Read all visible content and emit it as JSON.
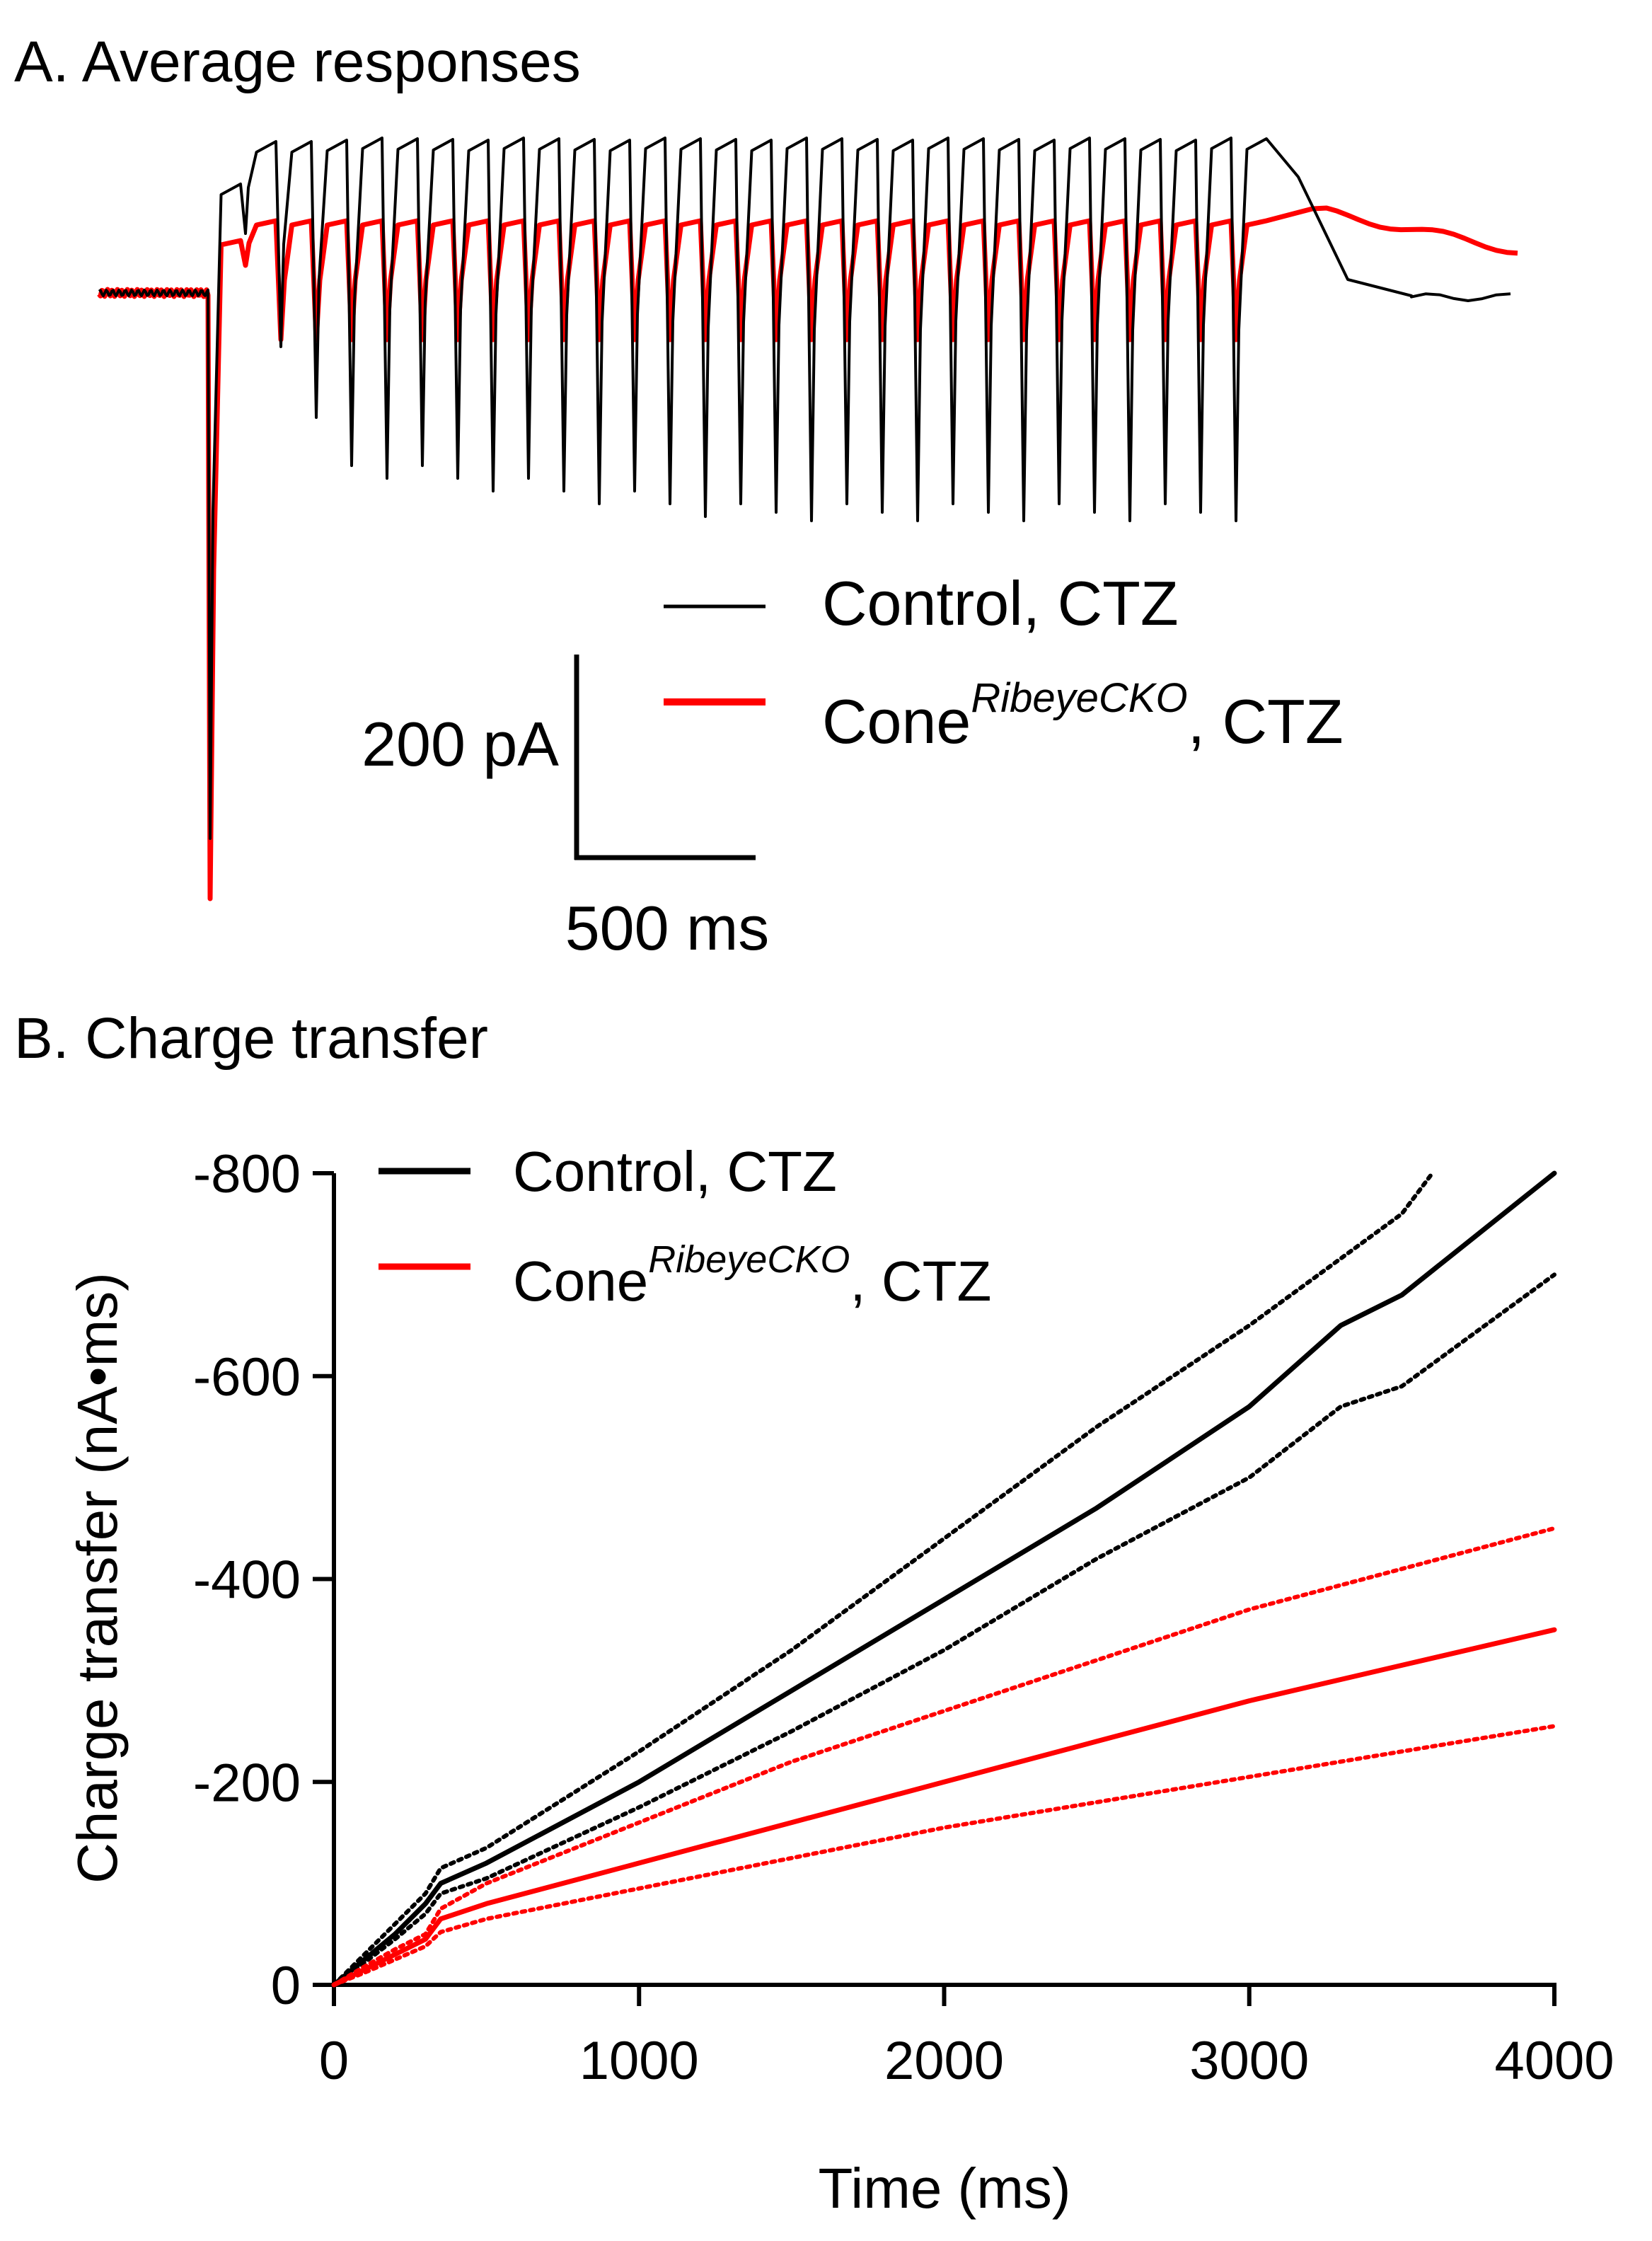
{
  "panel_a": {
    "title": "A. Average responses",
    "scale_bar": {
      "y_label": "200 pA",
      "x_label": "500 ms"
    },
    "legend": [
      {
        "label_main": "Control, CTZ",
        "label_prefix": "",
        "label_sup": "",
        "label_suffix": "",
        "color": "#000000"
      },
      {
        "label_main": "",
        "label_prefix": "Cone",
        "label_sup": "RibeyeCKO",
        "label_suffix": ", CTZ",
        "color": "#ff0000"
      }
    ]
  },
  "panel_b": {
    "title": "B. Charge transfer",
    "legend": [
      {
        "label_main": "Control, CTZ",
        "label_prefix": "",
        "label_sup": "",
        "label_suffix": "",
        "color": "#000000"
      },
      {
        "label_main": "",
        "label_prefix": "Cone",
        "label_sup": "RibeyeCKO",
        "label_suffix": ", CTZ",
        "color": "#ff0000"
      }
    ]
  },
  "chart_data": [
    {
      "type": "line",
      "title": "A. Average responses",
      "notes": "Averaged current traces during a train of stimuli; scale bars 200 pA and 500 ms (no numeric axes).",
      "series": [
        {
          "name": "Control, CTZ",
          "color": "#000000"
        },
        {
          "name": "ConeRibeyeCKO, CTZ",
          "color": "#ff0000"
        }
      ]
    },
    {
      "type": "line",
      "title": "B. Charge transfer",
      "xlabel": "Time (ms)",
      "ylabel": "Charge transfer (nA•ms)",
      "xlim": [
        0,
        4000
      ],
      "ylim": [
        0,
        -800
      ],
      "xticks": [
        "0",
        "1000",
        "2000",
        "3000",
        "4000"
      ],
      "yticks": [
        "0",
        "-200",
        "-400",
        "-600",
        "-800"
      ],
      "grid": false,
      "legend_position": "top-left",
      "series": [
        {
          "name": "Control, CTZ",
          "style": "solid",
          "color": "#000000",
          "x": [
            0,
            100,
            200,
            300,
            350,
            500,
            1000,
            1500,
            2000,
            2500,
            3000,
            3300,
            3500,
            4000
          ],
          "y": [
            0,
            -25,
            -50,
            -80,
            -100,
            -120,
            -200,
            -290,
            -380,
            -470,
            -570,
            -650,
            -680,
            -800
          ]
        },
        {
          "name": "Control, CTZ (+SEM)",
          "style": "dotted",
          "color": "#000000",
          "x": [
            0,
            100,
            200,
            300,
            350,
            500,
            1000,
            1500,
            2000,
            2500,
            3000,
            3500,
            3600
          ],
          "y": [
            0,
            -30,
            -60,
            -90,
            -115,
            -135,
            -230,
            -330,
            -440,
            -550,
            -650,
            -760,
            -800
          ]
        },
        {
          "name": "Control, CTZ (−SEM)",
          "style": "dotted",
          "color": "#000000",
          "x": [
            0,
            100,
            200,
            300,
            350,
            500,
            1000,
            1500,
            2000,
            2500,
            3000,
            3300,
            3500,
            4000
          ],
          "y": [
            0,
            -22,
            -45,
            -70,
            -90,
            -105,
            -175,
            -250,
            -330,
            -420,
            -500,
            -570,
            -590,
            -700
          ]
        },
        {
          "name": "ConeRibeyeCKO, CTZ",
          "style": "solid",
          "color": "#ff0000",
          "x": [
            0,
            100,
            200,
            300,
            350,
            500,
            1000,
            1500,
            2000,
            2500,
            3000,
            3500,
            4000
          ],
          "y": [
            0,
            -15,
            -30,
            -45,
            -65,
            -80,
            -120,
            -160,
            -200,
            -240,
            -280,
            -315,
            -350
          ]
        },
        {
          "name": "ConeRibeyeCKO, CTZ (+SEM)",
          "style": "dotted",
          "color": "#ff0000",
          "x": [
            0,
            100,
            200,
            300,
            350,
            500,
            1000,
            1500,
            2000,
            2500,
            3000,
            3500,
            4000
          ],
          "y": [
            0,
            -18,
            -35,
            -50,
            -75,
            -100,
            -160,
            -220,
            -270,
            -320,
            -370,
            -410,
            -450
          ]
        },
        {
          "name": "ConeRibeyeCKO, CTZ (−SEM)",
          "style": "dotted",
          "color": "#ff0000",
          "x": [
            0,
            100,
            200,
            300,
            350,
            500,
            1000,
            1500,
            2000,
            2500,
            3000,
            3500,
            4000
          ],
          "y": [
            0,
            -12,
            -25,
            -38,
            -52,
            -65,
            -95,
            -125,
            -155,
            -180,
            -205,
            -230,
            -255
          ]
        }
      ]
    }
  ]
}
